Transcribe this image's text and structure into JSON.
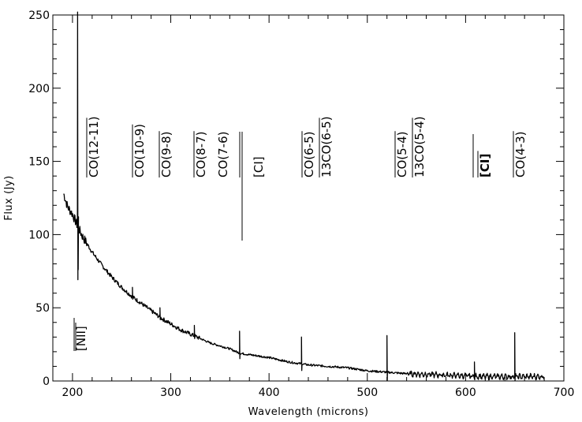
{
  "chart_data": {
    "type": "line",
    "xlabel": "Wavelength (microns)",
    "ylabel": "Flux (Jy)",
    "xlim": [
      180,
      700
    ],
    "ylim": [
      0,
      250
    ],
    "xticks": [
      200,
      300,
      400,
      500,
      600,
      700
    ],
    "yticks": [
      0,
      50,
      100,
      150,
      200,
      250
    ],
    "grid": false,
    "continuum": {
      "x": [
        191,
        195,
        200,
        205,
        210,
        220,
        230,
        240,
        250,
        260,
        270,
        280,
        290,
        300,
        310,
        320,
        330,
        340,
        350,
        360,
        370,
        380,
        390,
        400,
        420,
        440,
        460,
        480,
        500,
        520,
        540,
        560,
        580,
        600,
        620,
        640,
        660,
        680
      ],
      "y": [
        128,
        119,
        114,
        106,
        99,
        88,
        79,
        71,
        64,
        58,
        53,
        48,
        43,
        39,
        35,
        32,
        29,
        26,
        24,
        22,
        19,
        18,
        17,
        16,
        13,
        11,
        10,
        9,
        7,
        6,
        5,
        4.5,
        4,
        3.5,
        3,
        3,
        3,
        3
      ]
    },
    "peaks": [
      {
        "x": 205.2,
        "y": 252
      },
      {
        "x": 205.8,
        "y": 76
      },
      {
        "x": 261,
        "y": 64
      },
      {
        "x": 289,
        "y": 50
      },
      {
        "x": 324,
        "y": 38
      },
      {
        "x": 370,
        "y": 34
      },
      {
        "x": 433,
        "y": 30
      },
      {
        "x": 520,
        "y": 31
      },
      {
        "x": 609,
        "y": 13
      },
      {
        "x": 650,
        "y": 33
      }
    ],
    "line_annotations": [
      {
        "label": "CO(12-11)",
        "x": 217
      },
      {
        "label": "CO(10-9)",
        "x": 261
      },
      {
        "label": "CO(9-8)",
        "x": 289
      },
      {
        "label": "CO(8-7)",
        "x": 325
      },
      {
        "label": "CO(7-6)",
        "x": 371
      },
      {
        "label": "[CI]",
        "x": 370
      },
      {
        "label": "CO(6-5)",
        "x": 433
      },
      {
        "label": "13CO(6-5)",
        "x": 453
      },
      {
        "label": "CO(5-4)",
        "x": 520
      },
      {
        "label": "13CO(5-4)",
        "x": 544
      },
      {
        "label": "[CI]",
        "x": 609
      },
      {
        "label": "CO(4-3)",
        "x": 651
      },
      {
        "label": "[NII]",
        "x": 205
      }
    ]
  }
}
